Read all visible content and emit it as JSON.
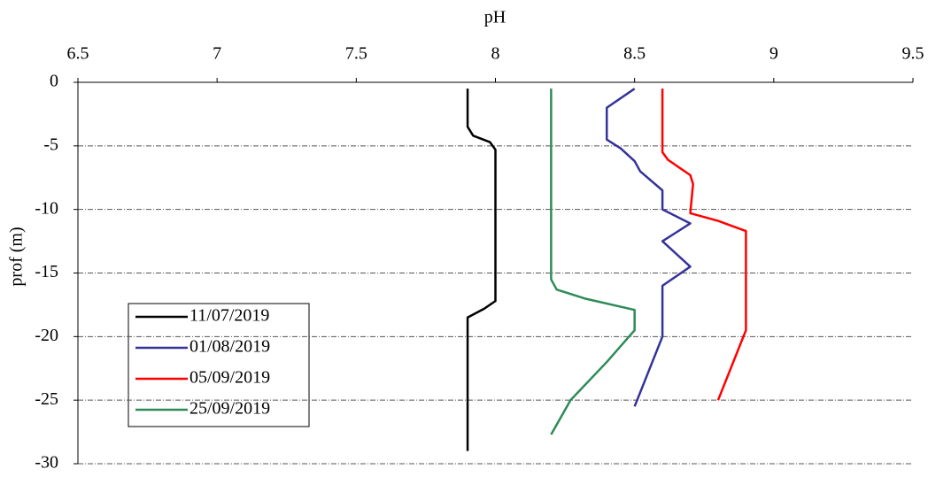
{
  "chart_data": {
    "type": "line",
    "x_label": "pH",
    "y_label": "prof (m)",
    "xlim": [
      6.5,
      9.5
    ],
    "xticks": [
      6.5,
      7,
      7.5,
      8,
      8.5,
      9,
      9.5
    ],
    "ylim": [
      -30,
      0
    ],
    "yticks": [
      0,
      -5,
      -10,
      -15,
      -20,
      -25,
      -30
    ],
    "grid": true,
    "legend": "lower left",
    "series": [
      {
        "name": "11/07/2019",
        "color": "#000000",
        "x": [
          7.9,
          7.9,
          7.92,
          7.98,
          8.0,
          8.0,
          8.0,
          7.96,
          7.9,
          7.9
        ],
        "y": [
          -0.5,
          -3.5,
          -4.2,
          -4.7,
          -5.3,
          -16.3,
          -17.2,
          -17.8,
          -18.5,
          -29
        ]
      },
      {
        "name": "01/08/2019",
        "color": "#333399",
        "x": [
          8.5,
          8.4,
          8.4,
          8.45,
          8.5,
          8.52,
          8.6,
          8.6,
          8.7,
          8.6,
          8.7,
          8.6,
          8.6,
          8.5
        ],
        "y": [
          -0.5,
          -2,
          -4.5,
          -5.2,
          -6.2,
          -7,
          -8.5,
          -10,
          -11.1,
          -12.5,
          -14.5,
          -16,
          -20,
          -25.5
        ]
      },
      {
        "name": "05/09/2019",
        "color": "#ff0000",
        "x": [
          8.6,
          8.6,
          8.62,
          8.7,
          8.71,
          8.7,
          8.8,
          8.9,
          8.9,
          8.8
        ],
        "y": [
          -0.5,
          -5.5,
          -6.1,
          -7.3,
          -8,
          -10.3,
          -10.9,
          -11.7,
          -19.5,
          -25
        ]
      },
      {
        "name": "25/09/2019",
        "color": "#2e8b57",
        "x": [
          8.2,
          8.2,
          8.22,
          8.32,
          8.5,
          8.5,
          8.4,
          8.27,
          8.2
        ],
        "y": [
          -0.5,
          -15.5,
          -16.3,
          -17,
          -17.9,
          -19.5,
          -22,
          -25,
          -27.7
        ]
      }
    ]
  }
}
